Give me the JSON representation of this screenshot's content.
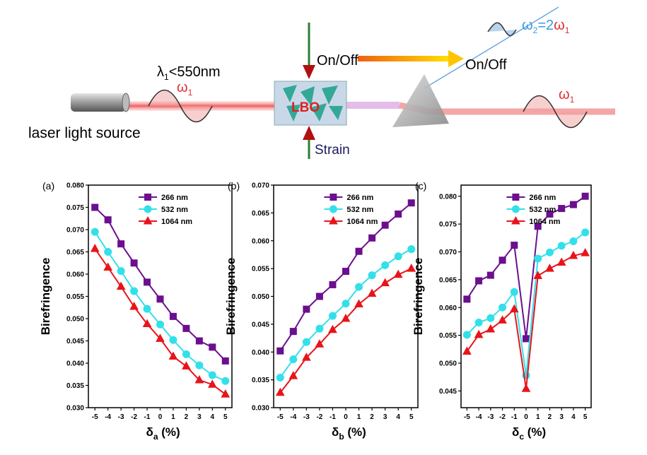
{
  "diagram": {
    "wavelength": [
      "λ",
      "1",
      "<550nm"
    ],
    "omega_in": [
      "ω",
      "1"
    ],
    "source_label": "laser light source",
    "switch_top": "On/Off",
    "crystal": "LBO",
    "strain": "Strain",
    "switch_out": "On/Off",
    "omega_out": [
      "ω",
      "2",
      "=2",
      "ω",
      "1"
    ],
    "omega_pass": [
      "ω",
      "1"
    ]
  },
  "chart_data": [
    {
      "type": "line",
      "panel": "(a)",
      "y_label": "Birefringence",
      "x_label": [
        "δ",
        "a",
        " (%)"
      ],
      "x": [
        -5,
        -4,
        -3,
        -2,
        -1,
        0,
        1,
        2,
        3,
        4,
        5
      ],
      "xlim": [
        -5.5,
        5.5
      ],
      "xticks": [
        -5,
        -4,
        -3,
        -2,
        -1,
        0,
        1,
        2,
        3,
        4,
        5
      ],
      "ylim": [
        0.03,
        0.08
      ],
      "yticks": [
        {
          "value": 0.03,
          "label": "0.030"
        },
        0.035,
        {
          "value": 0.04,
          "label": "0.040"
        },
        0.045,
        {
          "value": 0.05,
          "label": "0.050"
        },
        0.055,
        {
          "value": 0.06,
          "label": "0.060"
        },
        0.065,
        {
          "value": 0.07,
          "label": "0.070"
        },
        0.075,
        {
          "value": 0.08,
          "label": "0.080"
        }
      ],
      "series": [
        {
          "name": "266 nm",
          "color": "#6b0f8f",
          "marker": "square",
          "values": [
            0.075,
            0.0722,
            0.0668,
            0.0625,
            0.0582,
            0.0544,
            0.0505,
            0.0478,
            0.045,
            0.0436,
            0.0405
          ]
        },
        {
          "name": "532 nm",
          "color": "#33e0ea",
          "marker": "circle",
          "values": [
            0.0695,
            0.065,
            0.0607,
            0.0562,
            0.0522,
            0.0487,
            0.0452,
            0.042,
            0.0395,
            0.0373,
            0.036
          ]
        },
        {
          "name": "1064 nm",
          "color": "#e8141a",
          "marker": "triangle",
          "values": [
            0.0657,
            0.0615,
            0.0572,
            0.0527,
            0.0488,
            0.0455,
            0.0415,
            0.0393,
            0.0362,
            0.0352,
            0.033
          ]
        }
      ]
    },
    {
      "type": "line",
      "panel": "(b)",
      "y_label": "Birefringence",
      "x_label": [
        "δ",
        "b",
        " (%)"
      ],
      "x": [
        -5,
        -4,
        -3,
        -2,
        -1,
        0,
        1,
        2,
        3,
        4,
        5
      ],
      "xlim": [
        -5.5,
        5.5
      ],
      "xticks": [
        -5,
        -4,
        -3,
        -2,
        -1,
        0,
        1,
        2,
        3,
        4,
        5
      ],
      "ylim": [
        0.03,
        0.07
      ],
      "yticks": [
        {
          "value": 0.03,
          "label": "0.030"
        },
        0.035,
        {
          "value": 0.04,
          "label": "0.040"
        },
        0.045,
        {
          "value": 0.05,
          "label": "0.050"
        },
        0.055,
        {
          "value": 0.06,
          "label": "0.060"
        },
        0.065,
        {
          "value": 0.07,
          "label": "0.070"
        }
      ],
      "series": [
        {
          "name": "266 nm",
          "color": "#6b0f8f",
          "marker": "square",
          "values": [
            0.0402,
            0.0437,
            0.0477,
            0.05,
            0.0521,
            0.0545,
            0.0581,
            0.0605,
            0.0628,
            0.0648,
            0.0668
          ]
        },
        {
          "name": "532 nm",
          "color": "#33e0ea",
          "marker": "circle",
          "values": [
            0.0354,
            0.0387,
            0.0418,
            0.0442,
            0.0465,
            0.0487,
            0.0517,
            0.0538,
            0.0556,
            0.0572,
            0.0585
          ]
        },
        {
          "name": "1064 nm",
          "color": "#e8141a",
          "marker": "triangle",
          "values": [
            0.0327,
            0.0357,
            0.039,
            0.0414,
            0.044,
            0.046,
            0.0486,
            0.0505,
            0.0524,
            0.0539,
            0.055
          ]
        }
      ]
    },
    {
      "type": "line",
      "panel": "(c)",
      "y_label": "Birefringence",
      "x_label": [
        "δ",
        "c",
        " (%)"
      ],
      "x": [
        -5,
        -4,
        -3,
        -2,
        -1,
        0,
        1,
        2,
        3,
        4,
        5
      ],
      "xlim": [
        -5.5,
        5.5
      ],
      "xticks": [
        -5,
        -4,
        -3,
        -2,
        -1,
        0,
        1,
        2,
        3,
        4,
        5
      ],
      "ylim": [
        0.042,
        0.082
      ],
      "yticks": [
        0.045,
        {
          "value": 0.05,
          "label": "0.050"
        },
        0.055,
        {
          "value": 0.06,
          "label": "0.060"
        },
        0.065,
        {
          "value": 0.07,
          "label": "0.070"
        },
        0.075,
        {
          "value": 0.08,
          "label": "0.080"
        }
      ],
      "series": [
        {
          "name": "266 nm",
          "color": "#6b0f8f",
          "marker": "square",
          "values": [
            0.0615,
            0.0648,
            0.0658,
            0.0685,
            0.0712,
            0.0544,
            0.0746,
            0.0768,
            0.0778,
            0.0785,
            0.08
          ]
        },
        {
          "name": "532 nm",
          "color": "#33e0ea",
          "marker": "circle",
          "values": [
            0.0551,
            0.0573,
            0.0581,
            0.06,
            0.0628,
            0.0478,
            0.0688,
            0.0699,
            0.0711,
            0.0719,
            0.0735
          ]
        },
        {
          "name": "1064 nm",
          "color": "#e8141a",
          "marker": "triangle",
          "values": [
            0.0521,
            0.0551,
            0.0561,
            0.0577,
            0.0597,
            0.0454,
            0.0657,
            0.067,
            0.0681,
            0.0693,
            0.0698
          ]
        }
      ]
    }
  ]
}
